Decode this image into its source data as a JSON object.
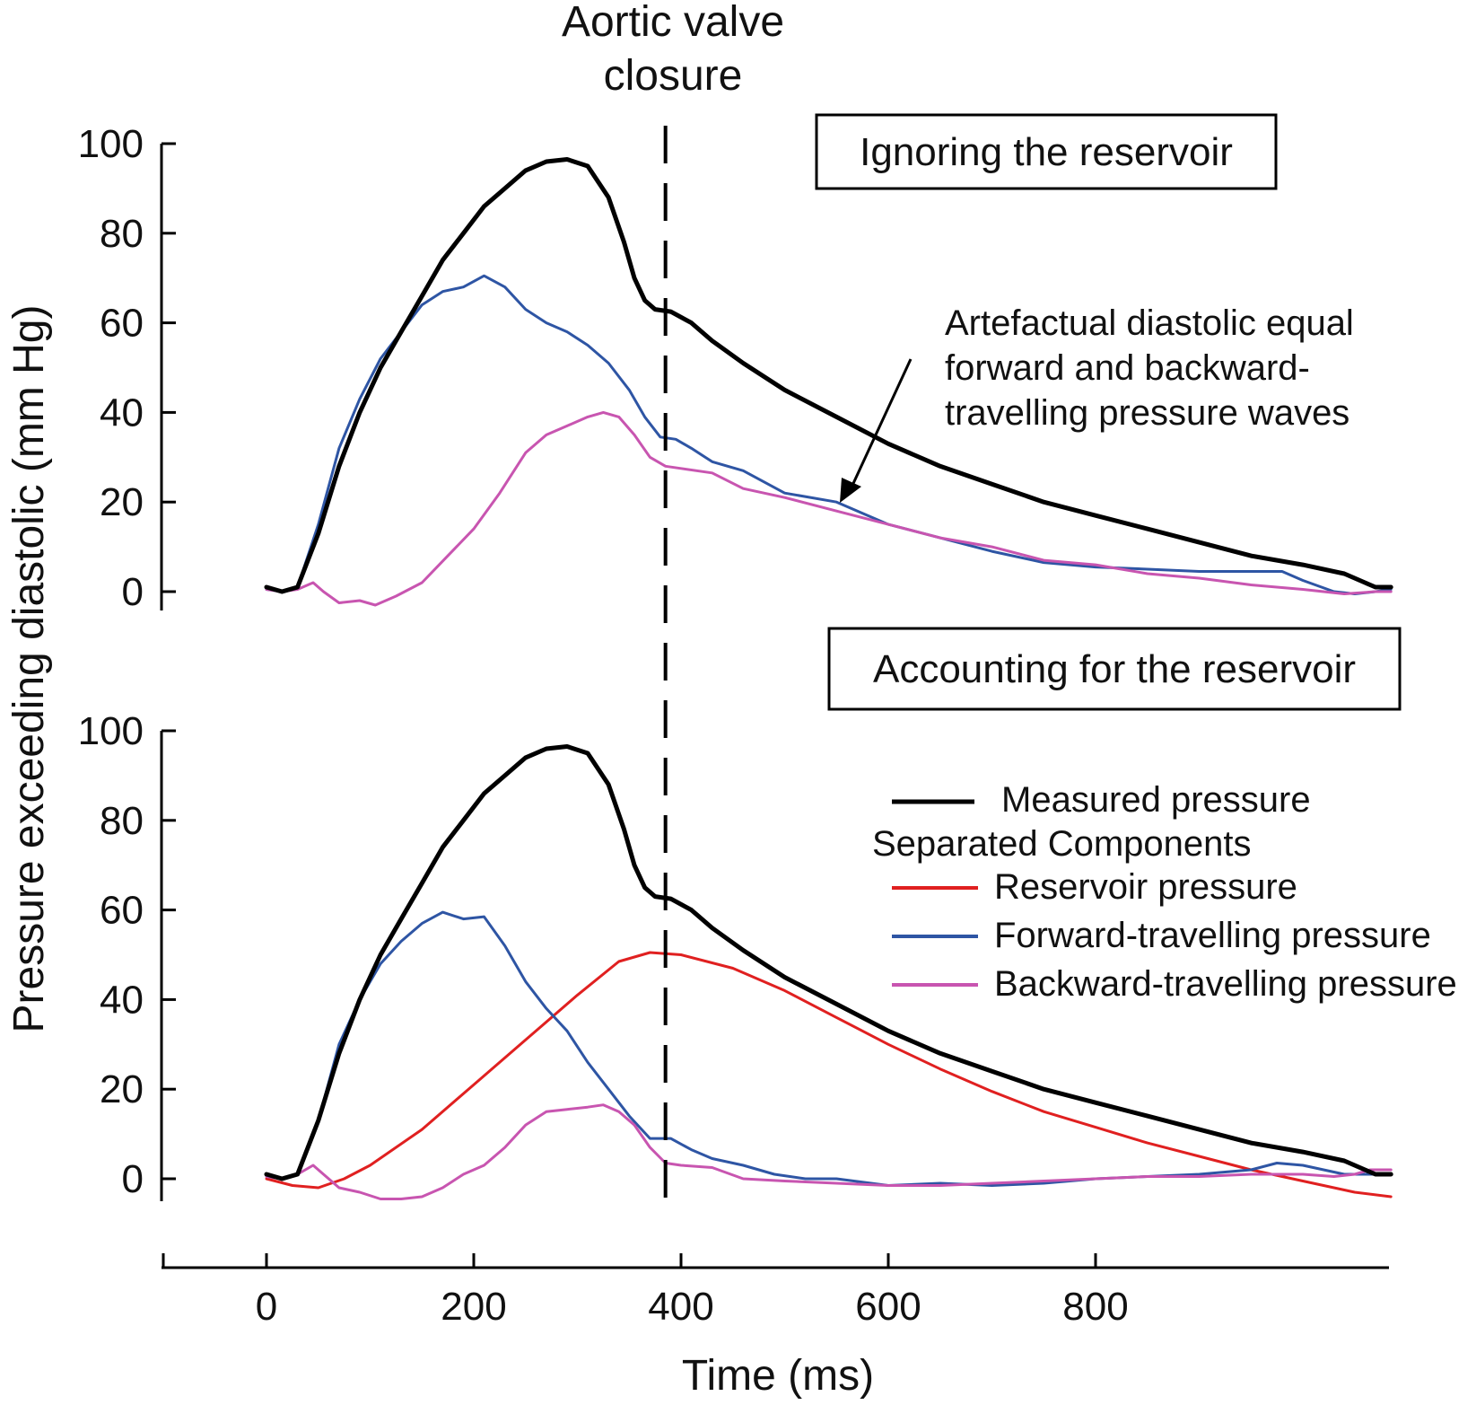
{
  "chart_data": [
    {
      "type": "line",
      "panel": "top",
      "box_label": "Ignoring the reservoir",
      "x_unit": "ms",
      "ylim": [
        0,
        100
      ],
      "yticks": [
        0,
        20,
        40,
        60,
        80,
        100
      ],
      "series": [
        {
          "key": "measured",
          "color": "#000000",
          "points": [
            [
              0,
              1
            ],
            [
              15,
              0
            ],
            [
              30,
              1
            ],
            [
              50,
              13
            ],
            [
              70,
              28
            ],
            [
              90,
              40
            ],
            [
              110,
              50
            ],
            [
              130,
              58
            ],
            [
              150,
              66
            ],
            [
              170,
              74
            ],
            [
              190,
              80
            ],
            [
              210,
              86
            ],
            [
              230,
              90
            ],
            [
              250,
              94
            ],
            [
              270,
              96
            ],
            [
              290,
              96.5
            ],
            [
              310,
              95
            ],
            [
              330,
              88
            ],
            [
              345,
              78
            ],
            [
              355,
              70
            ],
            [
              365,
              65
            ],
            [
              375,
              63
            ],
            [
              390,
              62.5
            ],
            [
              410,
              60
            ],
            [
              430,
              56
            ],
            [
              460,
              51
            ],
            [
              500,
              45
            ],
            [
              550,
              39
            ],
            [
              600,
              33
            ],
            [
              650,
              28
            ],
            [
              700,
              24
            ],
            [
              750,
              20
            ],
            [
              800,
              17
            ],
            [
              850,
              14
            ],
            [
              900,
              11
            ],
            [
              950,
              8
            ],
            [
              1000,
              6
            ],
            [
              1040,
              4
            ],
            [
              1060,
              2
            ],
            [
              1070,
              1
            ],
            [
              1085,
              1
            ]
          ]
        },
        {
          "key": "forward",
          "color": "#2e55a4",
          "points": [
            [
              0,
              0.5
            ],
            [
              15,
              0
            ],
            [
              30,
              1
            ],
            [
              50,
              15
            ],
            [
              70,
              32
            ],
            [
              90,
              43
            ],
            [
              110,
              52
            ],
            [
              130,
              58
            ],
            [
              150,
              64
            ],
            [
              170,
              67
            ],
            [
              190,
              68
            ],
            [
              210,
              70.5
            ],
            [
              230,
              68
            ],
            [
              250,
              63
            ],
            [
              270,
              60
            ],
            [
              290,
              58
            ],
            [
              310,
              55
            ],
            [
              330,
              51
            ],
            [
              350,
              45
            ],
            [
              365,
              39
            ],
            [
              380,
              34.5
            ],
            [
              395,
              34
            ],
            [
              410,
              32
            ],
            [
              430,
              29
            ],
            [
              460,
              27
            ],
            [
              500,
              22
            ],
            [
              550,
              20
            ],
            [
              600,
              15
            ],
            [
              650,
              12
            ],
            [
              700,
              9
            ],
            [
              750,
              6.5
            ],
            [
              800,
              5.5
            ],
            [
              850,
              5
            ],
            [
              900,
              4.5
            ],
            [
              950,
              4.5
            ],
            [
              980,
              4.5
            ],
            [
              1000,
              2.5
            ],
            [
              1030,
              0
            ],
            [
              1050,
              -0.5
            ],
            [
              1070,
              0
            ],
            [
              1085,
              0.5
            ]
          ]
        },
        {
          "key": "backward",
          "color": "#c855b0",
          "points": [
            [
              0,
              0.5
            ],
            [
              15,
              0
            ],
            [
              30,
              0.5
            ],
            [
              45,
              2
            ],
            [
              55,
              0
            ],
            [
              70,
              -2.5
            ],
            [
              90,
              -2
            ],
            [
              105,
              -3
            ],
            [
              125,
              -1
            ],
            [
              150,
              2
            ],
            [
              175,
              8
            ],
            [
              200,
              14
            ],
            [
              225,
              22
            ],
            [
              250,
              31
            ],
            [
              270,
              35
            ],
            [
              290,
              37
            ],
            [
              310,
              39
            ],
            [
              325,
              40
            ],
            [
              340,
              39
            ],
            [
              355,
              35
            ],
            [
              370,
              30
            ],
            [
              385,
              28
            ],
            [
              400,
              27.5
            ],
            [
              430,
              26.5
            ],
            [
              460,
              23
            ],
            [
              500,
              21
            ],
            [
              550,
              18
            ],
            [
              600,
              15
            ],
            [
              650,
              12
            ],
            [
              700,
              10
            ],
            [
              750,
              7
            ],
            [
              800,
              6
            ],
            [
              850,
              4
            ],
            [
              900,
              3
            ],
            [
              950,
              1.5
            ],
            [
              1000,
              0.5
            ],
            [
              1040,
              -0.5
            ],
            [
              1070,
              0
            ],
            [
              1085,
              0
            ]
          ]
        }
      ]
    },
    {
      "type": "line",
      "panel": "bottom",
      "box_label": "Accounting for the reservoir",
      "x_unit": "ms",
      "xticks": [
        0,
        200,
        400,
        600,
        800
      ],
      "xlabel": "Time (ms)",
      "ylim": [
        0,
        100
      ],
      "yticks": [
        0,
        20,
        40,
        60,
        80,
        100
      ],
      "series": [
        {
          "key": "measured",
          "color": "#000000",
          "points": [
            [
              0,
              1
            ],
            [
              15,
              0
            ],
            [
              30,
              1
            ],
            [
              50,
              13
            ],
            [
              70,
              28
            ],
            [
              90,
              40
            ],
            [
              110,
              50
            ],
            [
              130,
              58
            ],
            [
              150,
              66
            ],
            [
              170,
              74
            ],
            [
              190,
              80
            ],
            [
              210,
              86
            ],
            [
              230,
              90
            ],
            [
              250,
              94
            ],
            [
              270,
              96
            ],
            [
              290,
              96.5
            ],
            [
              310,
              95
            ],
            [
              330,
              88
            ],
            [
              345,
              78
            ],
            [
              355,
              70
            ],
            [
              365,
              65
            ],
            [
              375,
              63
            ],
            [
              390,
              62.5
            ],
            [
              410,
              60
            ],
            [
              430,
              56
            ],
            [
              460,
              51
            ],
            [
              500,
              45
            ],
            [
              550,
              39
            ],
            [
              600,
              33
            ],
            [
              650,
              28
            ],
            [
              700,
              24
            ],
            [
              750,
              20
            ],
            [
              800,
              17
            ],
            [
              850,
              14
            ],
            [
              900,
              11
            ],
            [
              950,
              8
            ],
            [
              1000,
              6
            ],
            [
              1040,
              4
            ],
            [
              1060,
              2
            ],
            [
              1070,
              1
            ],
            [
              1085,
              1
            ]
          ]
        },
        {
          "key": "reservoir",
          "color": "#e02020",
          "points": [
            [
              0,
              0
            ],
            [
              25,
              -1.5
            ],
            [
              50,
              -2
            ],
            [
              75,
              0
            ],
            [
              100,
              3
            ],
            [
              150,
              11
            ],
            [
              200,
              21
            ],
            [
              250,
              31
            ],
            [
              300,
              41
            ],
            [
              340,
              48.5
            ],
            [
              370,
              50.5
            ],
            [
              400,
              50
            ],
            [
              450,
              47
            ],
            [
              500,
              42
            ],
            [
              550,
              36
            ],
            [
              600,
              30
            ],
            [
              650,
              24.5
            ],
            [
              700,
              19.5
            ],
            [
              750,
              15
            ],
            [
              800,
              11.5
            ],
            [
              850,
              8
            ],
            [
              900,
              5
            ],
            [
              950,
              2
            ],
            [
              1000,
              -0.5
            ],
            [
              1050,
              -3
            ],
            [
              1085,
              -4
            ]
          ]
        },
        {
          "key": "forward",
          "color": "#2e55a4",
          "points": [
            [
              0,
              0.5
            ],
            [
              15,
              0
            ],
            [
              30,
              1
            ],
            [
              50,
              13
            ],
            [
              70,
              30
            ],
            [
              90,
              40
            ],
            [
              110,
              48
            ],
            [
              130,
              53
            ],
            [
              150,
              57
            ],
            [
              170,
              59.5
            ],
            [
              190,
              58
            ],
            [
              210,
              58.5
            ],
            [
              230,
              52
            ],
            [
              250,
              44
            ],
            [
              270,
              38
            ],
            [
              290,
              33
            ],
            [
              310,
              26
            ],
            [
              330,
              20
            ],
            [
              350,
              14
            ],
            [
              370,
              9
            ],
            [
              390,
              9
            ],
            [
              410,
              6.5
            ],
            [
              430,
              4.5
            ],
            [
              460,
              3
            ],
            [
              490,
              1
            ],
            [
              520,
              0
            ],
            [
              550,
              0
            ],
            [
              600,
              -1.5
            ],
            [
              650,
              -1
            ],
            [
              700,
              -1.5
            ],
            [
              750,
              -1
            ],
            [
              800,
              0
            ],
            [
              850,
              0.5
            ],
            [
              900,
              1
            ],
            [
              950,
              2
            ],
            [
              975,
              3.5
            ],
            [
              1000,
              3
            ],
            [
              1020,
              2
            ],
            [
              1040,
              1
            ],
            [
              1060,
              1
            ],
            [
              1085,
              1
            ]
          ]
        },
        {
          "key": "backward",
          "color": "#c855b0",
          "points": [
            [
              0,
              0.5
            ],
            [
              15,
              0
            ],
            [
              30,
              1
            ],
            [
              45,
              3
            ],
            [
              55,
              1
            ],
            [
              70,
              -2
            ],
            [
              90,
              -3
            ],
            [
              110,
              -4.5
            ],
            [
              130,
              -4.5
            ],
            [
              150,
              -4
            ],
            [
              170,
              -2
            ],
            [
              190,
              1
            ],
            [
              210,
              3
            ],
            [
              230,
              7
            ],
            [
              250,
              12
            ],
            [
              270,
              15
            ],
            [
              290,
              15.5
            ],
            [
              310,
              16
            ],
            [
              325,
              16.5
            ],
            [
              340,
              15
            ],
            [
              355,
              12
            ],
            [
              370,
              7
            ],
            [
              385,
              3.5
            ],
            [
              400,
              3
            ],
            [
              430,
              2.5
            ],
            [
              460,
              0
            ],
            [
              500,
              -0.5
            ],
            [
              550,
              -1
            ],
            [
              600,
              -1.5
            ],
            [
              650,
              -1.5
            ],
            [
              700,
              -1
            ],
            [
              750,
              -0.5
            ],
            [
              800,
              0
            ],
            [
              850,
              0.5
            ],
            [
              900,
              0.5
            ],
            [
              950,
              1
            ],
            [
              1000,
              1
            ],
            [
              1030,
              0.5
            ],
            [
              1050,
              1
            ],
            [
              1065,
              2
            ],
            [
              1085,
              2
            ]
          ]
        }
      ]
    }
  ],
  "shared": {
    "ylabel": "Pressure exceeding diastolic (mm Hg)",
    "vline_x": 385,
    "vline_label_line1": "Aortic valve",
    "vline_label_line2": "closure"
  },
  "annotation": {
    "line1": "Artefactual diastolic equal",
    "line2": "forward and backward-",
    "line3": "travelling pressure waves"
  },
  "legend": {
    "measured": "Measured pressure",
    "group_title": "Separated Components",
    "reservoir": "Reservoir pressure",
    "forward": "Forward-travelling pressure",
    "backward": "Backward-travelling pressure"
  },
  "colors": {
    "measured": "#000000",
    "reservoir": "#e02020",
    "forward": "#2e55a4",
    "backward": "#c855b0"
  }
}
